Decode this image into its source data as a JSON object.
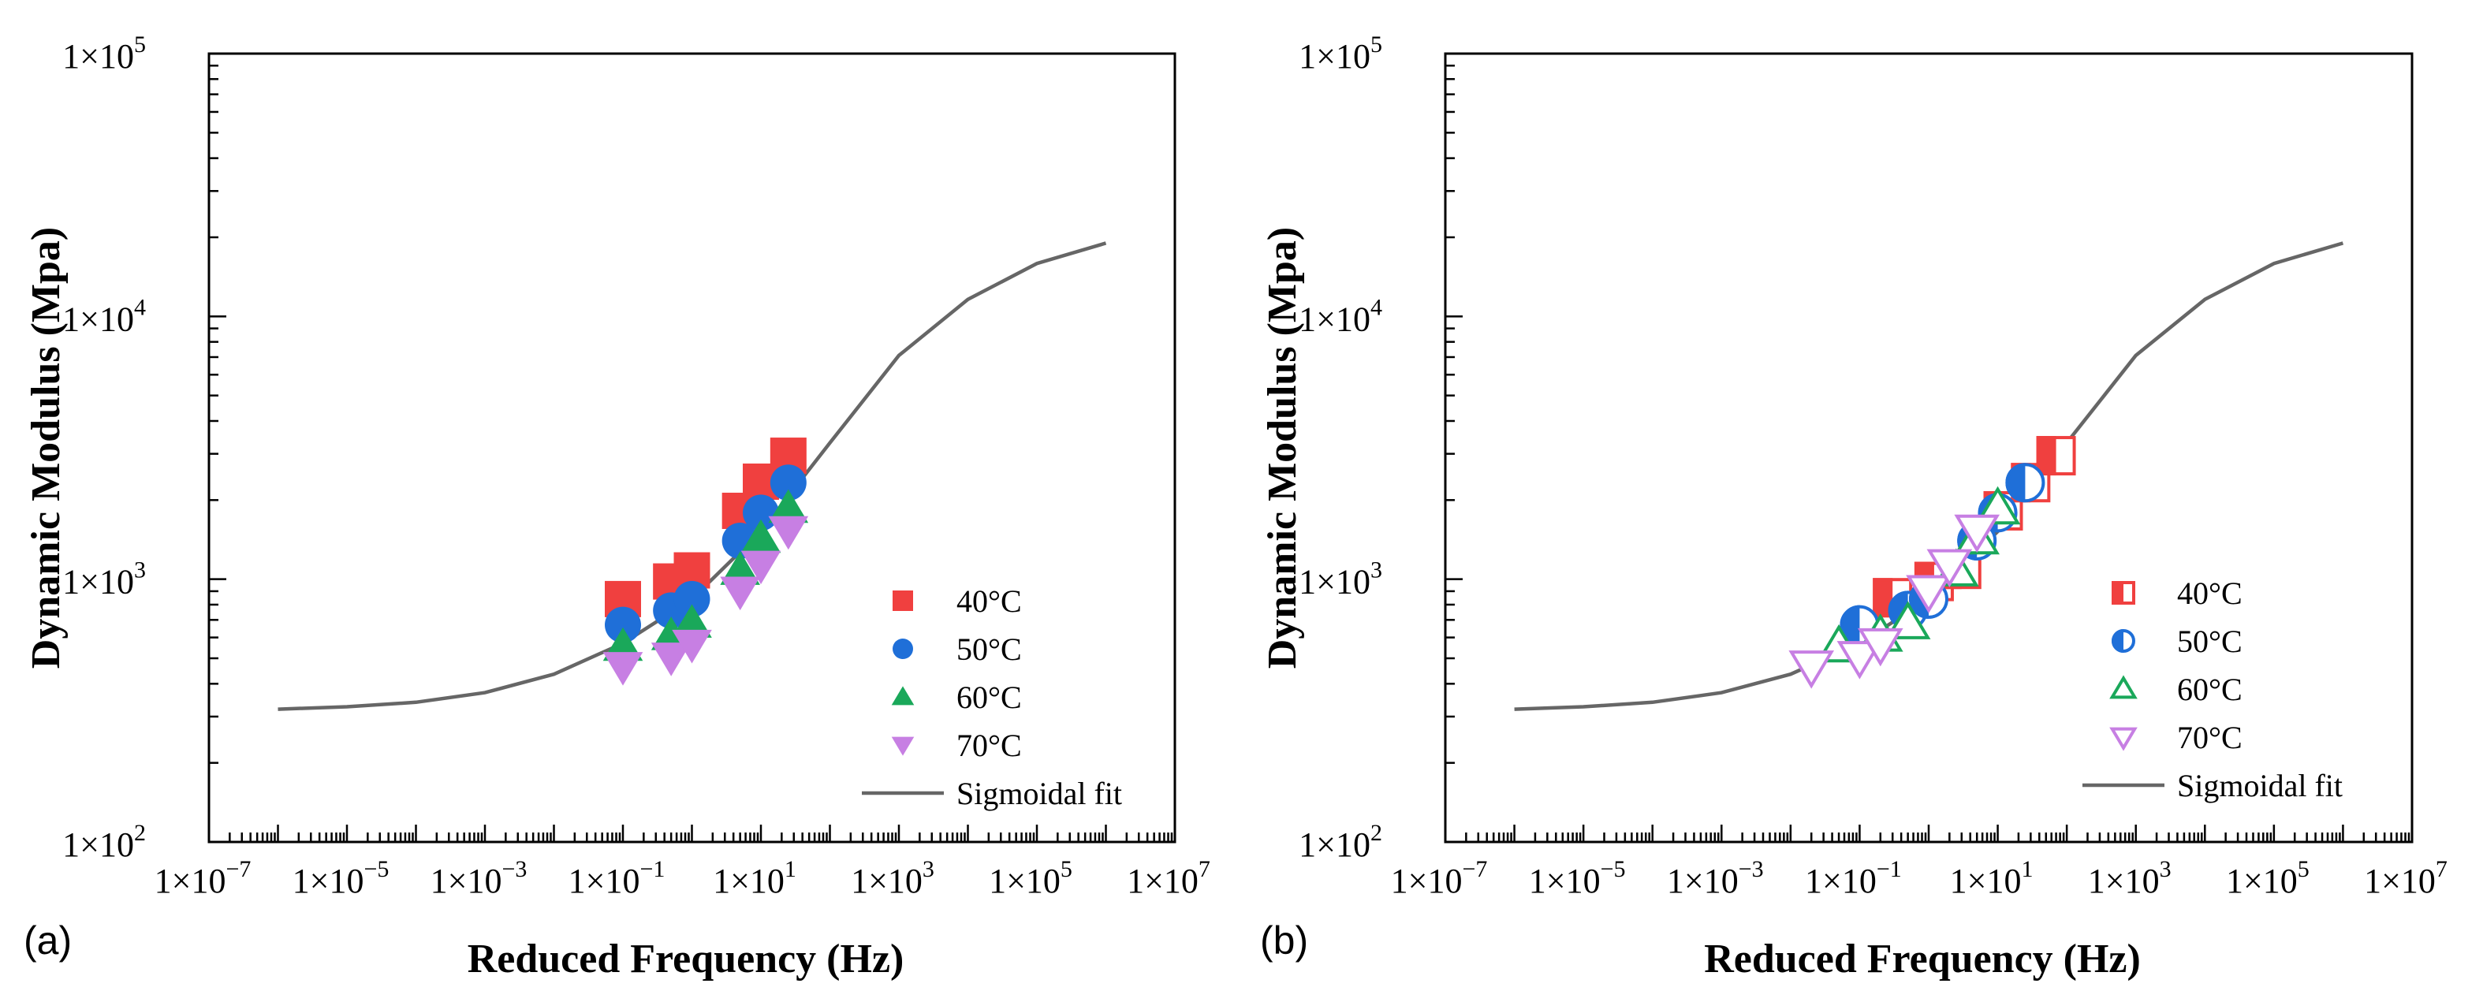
{
  "chart_data": [
    {
      "panel": "(a)",
      "type": "scatter",
      "xlabel": "Reduced Frequency (Hz)",
      "ylabel": "Dynamic Modulus (Mpa)",
      "xscale": "log",
      "yscale": "log",
      "xlim": [
        1e-07,
        10000000.0
      ],
      "ylim": [
        100,
        100000
      ],
      "x_ticks": [
        {
          "v": 1e-07,
          "label": "1×10"
        },
        {
          "v": 1e-05,
          "label": "1×10"
        },
        {
          "v": 0.001,
          "label": "1×10"
        },
        {
          "v": 0.1,
          "label": "1×10"
        },
        {
          "v": 10.0,
          "label": "1×10"
        },
        {
          "v": 1000.0,
          "label": "1×10"
        },
        {
          "v": 100000.0,
          "label": "1×10"
        },
        {
          "v": 10000000.0,
          "label": "1×10"
        }
      ],
      "x_tick_exponents": [
        "−7",
        "−5",
        "−3",
        "−1",
        "1",
        "3",
        "5",
        "7"
      ],
      "y_ticks": [
        {
          "v": 100,
          "label": "1×10"
        },
        {
          "v": 1000,
          "label": "1×10"
        },
        {
          "v": 10000,
          "label": "1×10"
        },
        {
          "v": 100000,
          "label": "1×10"
        }
      ],
      "y_tick_exponents": [
        "2",
        "3",
        "4",
        "5"
      ],
      "legend_position": "lower-right",
      "series": [
        {
          "name": "40°C",
          "marker": "square",
          "fill": "solid",
          "color": "#f0403f",
          "points": [
            [
              0.1,
              840
            ],
            [
              0.5,
              980
            ],
            [
              1,
              1080
            ],
            [
              5,
              1820
            ],
            [
              10,
              2350
            ],
            [
              25,
              2950
            ]
          ]
        },
        {
          "name": "50°C",
          "marker": "circle",
          "fill": "solid",
          "color": "#1f6fd8",
          "points": [
            [
              0.1,
              670
            ],
            [
              0.5,
              760
            ],
            [
              1,
              840
            ],
            [
              5,
              1400
            ],
            [
              10,
              1790
            ],
            [
              25,
              2330
            ]
          ]
        },
        {
          "name": "60°C",
          "marker": "triangle-up",
          "fill": "solid",
          "color": "#1aa85a",
          "points": [
            [
              0.1,
              555
            ],
            [
              0.5,
              610
            ],
            [
              1,
              680
            ],
            [
              5,
              1080
            ],
            [
              10,
              1430
            ],
            [
              25,
              1860
            ]
          ]
        },
        {
          "name": "70°C",
          "marker": "triangle-down",
          "fill": "solid",
          "color": "#c77fe3",
          "points": [
            [
              0.1,
              465
            ],
            [
              0.5,
              505
            ],
            [
              1,
              565
            ],
            [
              5,
              900
            ],
            [
              10,
              1130
            ],
            [
              25,
              1530
            ]
          ]
        },
        {
          "name": "Sigmoidal fit",
          "marker": "line",
          "color": "#666666",
          "points": [
            [
              1e-06,
              320
            ],
            [
              1e-05,
              327
            ],
            [
              0.0001,
              340
            ],
            [
              0.001,
              370
            ],
            [
              0.01,
              435
            ],
            [
              0.1,
              570
            ],
            [
              1,
              840
            ],
            [
              10,
              1520
            ],
            [
              100,
              3300
            ],
            [
              1000,
              7100
            ],
            [
              10000,
              11600
            ],
            [
              100000,
              15900
            ],
            [
              1000000,
              19000
            ]
          ]
        }
      ]
    },
    {
      "panel": "(b)",
      "type": "scatter",
      "xlabel": "Reduced Frequency (Hz)",
      "ylabel": "Dynamic Modulus (Mpa)",
      "xscale": "log",
      "yscale": "log",
      "xlim": [
        1e-07,
        10000000.0
      ],
      "ylim": [
        100,
        100000
      ],
      "x_ticks": [
        {
          "v": 1e-07,
          "label": "1×10"
        },
        {
          "v": 1e-05,
          "label": "1×10"
        },
        {
          "v": 0.001,
          "label": "1×10"
        },
        {
          "v": 0.1,
          "label": "1×10"
        },
        {
          "v": 10.0,
          "label": "1×10"
        },
        {
          "v": 1000.0,
          "label": "1×10"
        },
        {
          "v": 100000.0,
          "label": "1×10"
        },
        {
          "v": 10000000.0,
          "label": "1×10"
        }
      ],
      "x_tick_exponents": [
        "−7",
        "−5",
        "−3",
        "−1",
        "1",
        "3",
        "5",
        "7"
      ],
      "y_ticks": [
        {
          "v": 100,
          "label": "1×10"
        },
        {
          "v": 1000,
          "label": "1×10"
        },
        {
          "v": 10000,
          "label": "1×10"
        },
        {
          "v": 100000,
          "label": "1×10"
        }
      ],
      "y_tick_exponents": [
        "2",
        "3",
        "4",
        "5"
      ],
      "legend_position": "lower-right",
      "series": [
        {
          "name": "40°C",
          "marker": "square",
          "fill": "half",
          "color": "#f0403f",
          "points": [
            [
              0.3,
              850
            ],
            [
              1.2,
              980
            ],
            [
              3,
              1090
            ],
            [
              12,
              1820
            ],
            [
              30,
              2330
            ],
            [
              70,
              2950
            ]
          ]
        },
        {
          "name": "50°C",
          "marker": "circle",
          "fill": "half",
          "color": "#1f6fd8",
          "points": [
            [
              0.1,
              670
            ],
            [
              0.5,
              760
            ],
            [
              1,
              840
            ],
            [
              5,
              1400
            ],
            [
              10,
              1790
            ],
            [
              25,
              2330
            ]
          ]
        },
        {
          "name": "60°C",
          "marker": "triangle-up",
          "fill": "open",
          "color": "#1aa85a",
          "points": [
            [
              0.05,
              555
            ],
            [
              0.2,
              610
            ],
            [
              0.5,
              680
            ],
            [
              2.5,
              1080
            ],
            [
              5,
              1430
            ],
            [
              10,
              1860
            ]
          ]
        },
        {
          "name": "70°C",
          "marker": "triangle-down",
          "fill": "open",
          "color": "#c77fe3",
          "points": [
            [
              0.02,
              465
            ],
            [
              0.1,
              505
            ],
            [
              0.2,
              565
            ],
            [
              1,
              900
            ],
            [
              2,
              1130
            ],
            [
              5,
              1530
            ]
          ]
        },
        {
          "name": "Sigmoidal fit",
          "marker": "line",
          "color": "#666666",
          "points": [
            [
              1e-06,
              320
            ],
            [
              1e-05,
              327
            ],
            [
              0.0001,
              340
            ],
            [
              0.001,
              370
            ],
            [
              0.01,
              435
            ],
            [
              0.1,
              570
            ],
            [
              1,
              840
            ],
            [
              10,
              1520
            ],
            [
              100,
              3300
            ],
            [
              1000,
              7100
            ],
            [
              10000,
              11600
            ],
            [
              100000,
              15900
            ],
            [
              1000000,
              19000
            ]
          ]
        }
      ]
    }
  ]
}
